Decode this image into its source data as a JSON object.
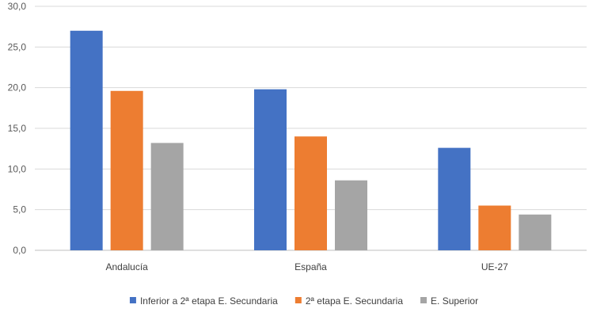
{
  "chart_data": {
    "type": "bar",
    "title": "",
    "xlabel": "",
    "ylabel": "",
    "categories": [
      "Andalucía",
      "España",
      "UE-27"
    ],
    "series": [
      {
        "name": "Inferior a 2ª etapa E. Secundaria",
        "color": "#4472C4",
        "values": [
          27.0,
          19.8,
          12.6
        ]
      },
      {
        "name": "2ª etapa E. Secundaria",
        "color": "#ED7D31",
        "values": [
          19.6,
          14.0,
          5.5
        ]
      },
      {
        "name": "E. Superior",
        "color": "#A5A5A5",
        "values": [
          13.2,
          8.6,
          4.4
        ]
      }
    ],
    "ylim": [
      0,
      30
    ],
    "yticks": [
      "0,0",
      "5,0",
      "10,0",
      "15,0",
      "20,0",
      "25,0",
      "30,0"
    ],
    "grid": true,
    "legend_position": "bottom"
  }
}
